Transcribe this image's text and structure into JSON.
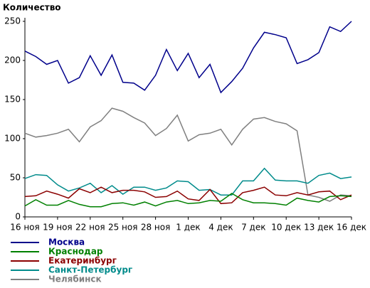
{
  "chart_data": {
    "type": "line",
    "title": "Количество",
    "categories": [
      "16 ноя",
      null,
      null,
      "19 ноя",
      null,
      null,
      "22 ноя",
      null,
      null,
      "25 ноя",
      null,
      null,
      "28 ноя",
      null,
      null,
      "1 дек",
      null,
      null,
      "4 дек",
      null,
      null,
      "7 дек",
      null,
      null,
      "10 дек",
      null,
      null,
      "13 дек",
      null,
      null,
      "16 дек"
    ],
    "ylim": [
      0,
      250
    ],
    "yticks": [
      0,
      50,
      100,
      150,
      200,
      250
    ],
    "series": [
      {
        "name": "Москва",
        "color": "#00008b",
        "values": [
          212,
          205,
          195,
          200,
          171,
          178,
          206,
          181,
          207,
          172,
          171,
          162,
          181,
          214,
          187,
          209,
          178,
          195,
          159,
          173,
          190,
          216,
          236,
          233,
          229,
          196,
          201,
          210,
          243,
          237,
          250
        ]
      },
      {
        "name": "Краснодар",
        "color": "#008000",
        "values": [
          14,
          22,
          15,
          15,
          21,
          16,
          13,
          13,
          17,
          18,
          15,
          19,
          14,
          19,
          21,
          17,
          18,
          21,
          20,
          30,
          22,
          18,
          18,
          17,
          15,
          24,
          21,
          19,
          26,
          27,
          26
        ]
      },
      {
        "name": "Екатеринбург",
        "color": "#8b0000",
        "values": [
          26,
          27,
          33,
          29,
          24,
          36,
          31,
          38,
          31,
          34,
          34,
          32,
          25,
          26,
          33,
          23,
          21,
          35,
          17,
          18,
          31,
          34,
          38,
          28,
          27,
          31,
          28,
          32,
          33,
          22,
          28
        ]
      },
      {
        "name": "Санкт-Петербург",
        "color": "#008b8b",
        "values": [
          49,
          54,
          53,
          41,
          33,
          37,
          43,
          31,
          40,
          29,
          38,
          38,
          34,
          37,
          46,
          45,
          34,
          35,
          28,
          28,
          46,
          46,
          62,
          47,
          46,
          46,
          43,
          53,
          56,
          49,
          51
        ]
      },
      {
        "name": "Челябинск",
        "color": "#808080",
        "values": [
          107,
          102,
          104,
          107,
          112,
          96,
          115,
          123,
          139,
          135,
          127,
          120,
          104,
          113,
          130,
          97,
          105,
          107,
          112,
          92,
          112,
          125,
          127,
          122,
          119,
          110,
          28,
          25,
          20,
          28,
          27
        ]
      }
    ]
  }
}
